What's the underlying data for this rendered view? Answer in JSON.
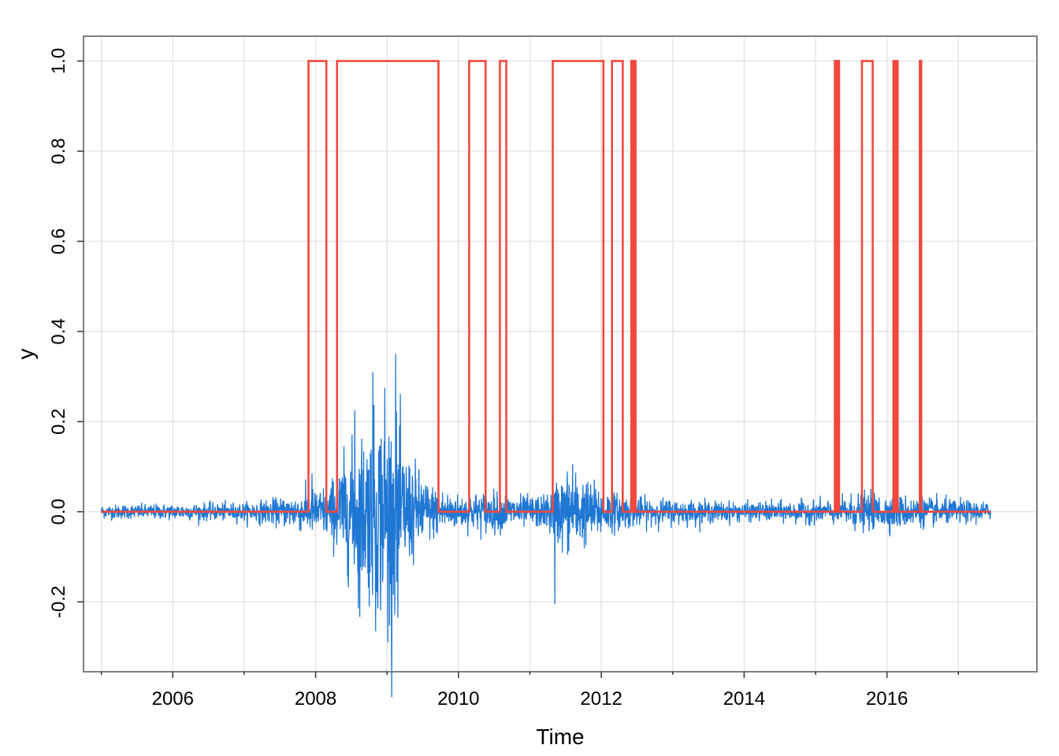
{
  "chart_data": {
    "type": "line",
    "xlabel": "Time",
    "ylabel": "y",
    "xlim": [
      2004.75,
      2018.1
    ],
    "ylim": [
      -0.355,
      1.055
    ],
    "x_ticks": [
      2006,
      2008,
      2010,
      2012,
      2014,
      2016
    ],
    "x_tick_labels": [
      "2006",
      "2008",
      "2010",
      "2012",
      "2014",
      "2016"
    ],
    "x_minor_ticks": [
      2005,
      2007,
      2009,
      2011,
      2013,
      2015,
      2017
    ],
    "y_ticks": [
      -0.2,
      0.0,
      0.2,
      0.4,
      0.6,
      0.8,
      1.0
    ],
    "y_tick_labels": [
      "-0.2",
      "0.0",
      "0.2",
      "0.4",
      "0.6",
      "0.8",
      "1.0"
    ],
    "grid": true,
    "x_range": [
      2005.0,
      2017.45
    ],
    "colors": {
      "returns": "#1f77d4",
      "regime": "#f0483e",
      "grid": "#e5e5e5",
      "frame": "#7f7f7f"
    },
    "series": [
      {
        "kind": "returns",
        "envelope": [
          {
            "x": 2005.0,
            "amp": 0.015
          },
          {
            "x": 2006.0,
            "amp": 0.017
          },
          {
            "x": 2007.0,
            "amp": 0.02
          },
          {
            "x": 2007.5,
            "amp": 0.03
          },
          {
            "x": 2007.9,
            "amp": 0.045
          },
          {
            "x": 2008.2,
            "amp": 0.06
          },
          {
            "x": 2008.4,
            "amp": 0.12
          },
          {
            "x": 2008.7,
            "amp": 0.18
          },
          {
            "x": 2008.95,
            "amp": 0.22
          },
          {
            "x": 2009.1,
            "amp": 0.2
          },
          {
            "x": 2009.3,
            "amp": 0.12
          },
          {
            "x": 2009.6,
            "amp": 0.06
          },
          {
            "x": 2010.0,
            "amp": 0.035
          },
          {
            "x": 2010.4,
            "amp": 0.045
          },
          {
            "x": 2010.8,
            "amp": 0.035
          },
          {
            "x": 2011.2,
            "amp": 0.035
          },
          {
            "x": 2011.5,
            "amp": 0.09
          },
          {
            "x": 2011.8,
            "amp": 0.07
          },
          {
            "x": 2012.2,
            "amp": 0.04
          },
          {
            "x": 2012.6,
            "amp": 0.03
          },
          {
            "x": 2014.0,
            "amp": 0.02
          },
          {
            "x": 2015.2,
            "amp": 0.025
          },
          {
            "x": 2015.6,
            "amp": 0.04
          },
          {
            "x": 2016.2,
            "amp": 0.035
          },
          {
            "x": 2017.45,
            "amp": 0.02
          }
        ],
        "spikes": [
          {
            "x": 2008.55,
            "y": 0.225
          },
          {
            "x": 2008.6,
            "y": -0.215
          },
          {
            "x": 2008.8,
            "y": 0.31
          },
          {
            "x": 2008.84,
            "y": -0.265
          },
          {
            "x": 2008.97,
            "y": 0.275
          },
          {
            "x": 2009.01,
            "y": -0.29
          },
          {
            "x": 2009.06,
            "y": -0.255
          },
          {
            "x": 2009.12,
            "y": 0.35
          },
          {
            "x": 2009.15,
            "y": -0.235
          },
          {
            "x": 2011.35,
            "y": -0.205
          },
          {
            "x": 2011.6,
            "y": 0.105
          },
          {
            "x": 2007.95,
            "y": 0.085
          },
          {
            "x": 2008.15,
            "y": 0.085
          }
        ]
      },
      {
        "kind": "regime",
        "segments": [
          [
            2007.9,
            2008.15
          ],
          [
            2008.3,
            2009.72
          ],
          [
            2010.15,
            2010.38
          ],
          [
            2010.58,
            2010.67
          ],
          [
            2011.32,
            2012.03
          ],
          [
            2012.15,
            2012.3
          ],
          [
            2012.42,
            2012.44
          ],
          [
            2012.46,
            2012.48
          ],
          [
            2015.27,
            2015.29
          ],
          [
            2015.31,
            2015.33
          ],
          [
            2015.65,
            2015.8
          ],
          [
            2016.09,
            2016.11
          ],
          [
            2016.13,
            2016.15
          ],
          [
            2016.46,
            2016.48
          ]
        ]
      }
    ]
  }
}
